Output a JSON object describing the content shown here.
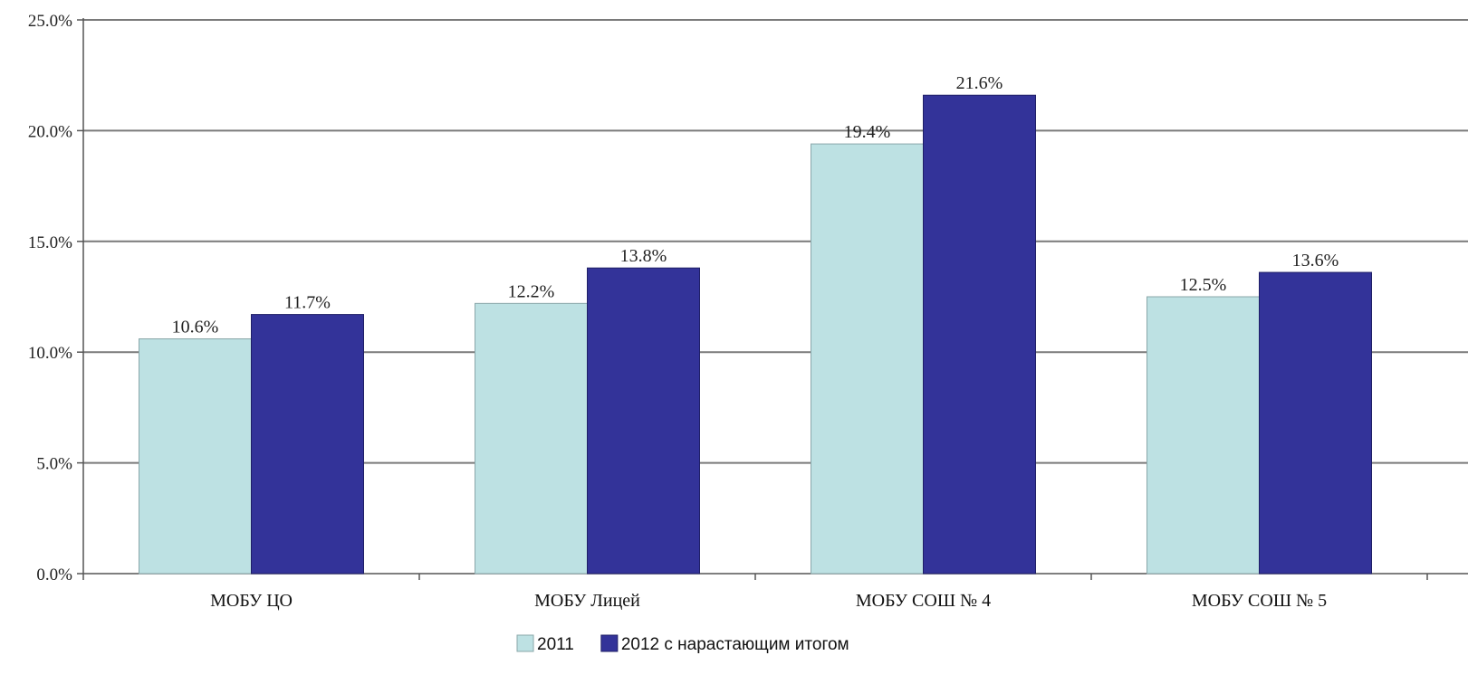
{
  "chart_data": {
    "type": "bar",
    "categories": [
      "МОБУ ЦО",
      "МОБУ Лицей",
      "МОБУ СОШ № 4",
      "МОБУ СОШ № 5"
    ],
    "series": [
      {
        "name": "2011",
        "values": [
          10.6,
          12.2,
          19.4,
          12.5
        ],
        "labels": [
          "10.6%",
          "12.2%",
          "19.4%",
          "12.5%"
        ],
        "color": "#bde1e3"
      },
      {
        "name": "2012 с нарастающим итогом",
        "values": [
          11.7,
          13.8,
          21.6,
          13.6
        ],
        "labels": [
          "11.7%",
          "13.8%",
          "21.6%",
          "13.6%"
        ],
        "color": "#333399"
      }
    ],
    "ylim": [
      0,
      25
    ],
    "yticks": [
      0,
      5,
      10,
      15,
      20,
      25
    ],
    "ytick_labels": [
      "0.0%",
      "5.0%",
      "10.0%",
      "15.0%",
      "20.0%",
      "25.0%"
    ],
    "grid": true,
    "legend_position": "bottom"
  }
}
